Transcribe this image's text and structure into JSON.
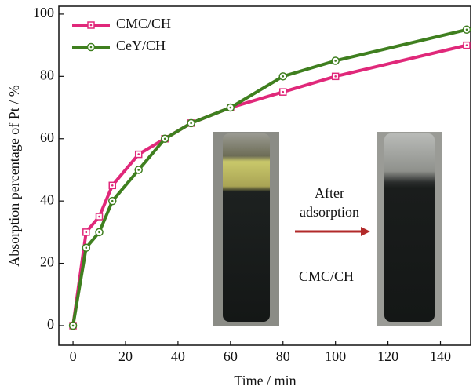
{
  "chart_data": {
    "type": "line",
    "xlabel": "Time / min",
    "ylabel": "Absorption percentage of Pt / %",
    "x": [
      0,
      5,
      10,
      15,
      25,
      35,
      45,
      60,
      80,
      100,
      150
    ],
    "series": [
      {
        "name": "CMC/CH",
        "color": "#e0287a",
        "marker": "square",
        "values": [
          0,
          30,
          35,
          45,
          55,
          60,
          65,
          70,
          75,
          80,
          90
        ]
      },
      {
        "name": "CeY/CH",
        "color": "#3f7f1f",
        "marker": "circle",
        "values": [
          0,
          25,
          30,
          40,
          50,
          60,
          65,
          70,
          80,
          85,
          95
        ]
      }
    ],
    "xlim": [
      -5.4,
      151.5
    ],
    "ylim": [
      -6.3,
      102.5
    ],
    "xticks": [
      0,
      20,
      40,
      60,
      80,
      100,
      120,
      140
    ],
    "yticks": [
      0,
      20,
      40,
      60,
      80,
      100
    ],
    "legend": "upper left",
    "annotations": [
      "After",
      "adsorption",
      "CMC/CH"
    ]
  }
}
